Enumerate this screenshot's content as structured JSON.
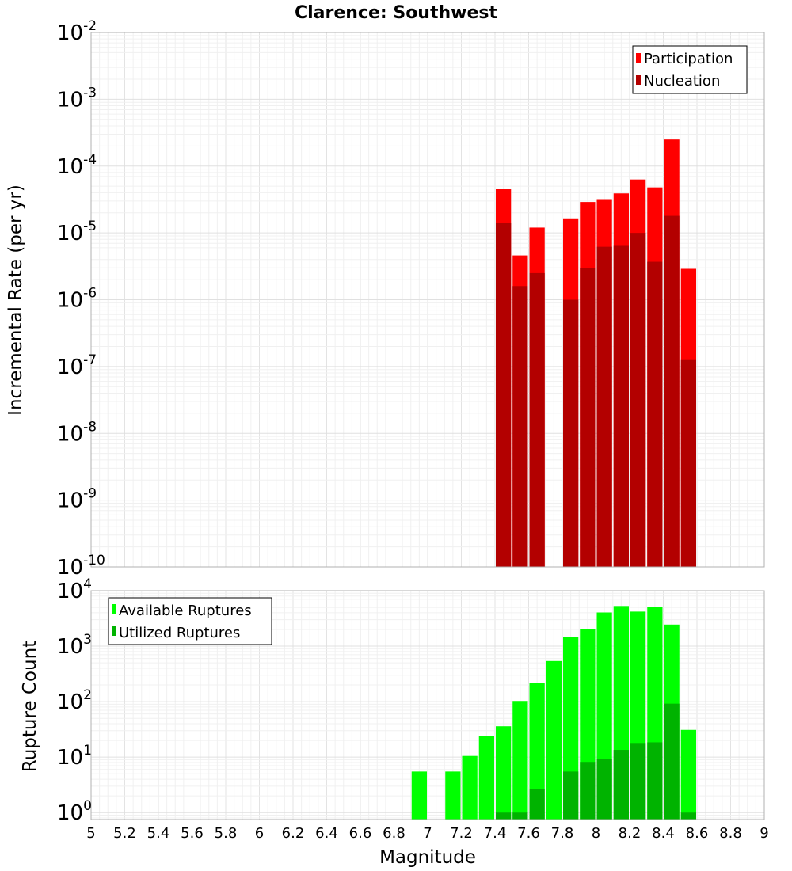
{
  "chart_data": [
    {
      "type": "bar",
      "title": "Clarence: Southwest",
      "xlabel": "",
      "ylabel": "Incremental Rate (per yr)",
      "yscale": "log",
      "ylim": [
        1e-10,
        0.01
      ],
      "ytick_labels": [
        {
          "base": "10",
          "exp": "-10"
        },
        {
          "base": "10",
          "exp": "-9"
        },
        {
          "base": "10",
          "exp": "-8"
        },
        {
          "base": "10",
          "exp": "-7"
        },
        {
          "base": "10",
          "exp": "-6"
        },
        {
          "base": "10",
          "exp": "-5"
        },
        {
          "base": "10",
          "exp": "-4"
        },
        {
          "base": "10",
          "exp": "-3"
        },
        {
          "base": "10",
          "exp": "-2"
        }
      ],
      "xlim": [
        5,
        9
      ],
      "bar_width": 0.1,
      "legend": {
        "position": "top-right",
        "entries": [
          "Participation",
          "Nucleation"
        ]
      },
      "series": [
        {
          "name": "Participation",
          "color": "#ff0000",
          "x": [
            7.45,
            7.55,
            7.65,
            7.85,
            7.95,
            8.05,
            8.15,
            8.25,
            8.35,
            8.45,
            8.55
          ],
          "values": [
            4.5e-05,
            4.6e-06,
            1.2e-05,
            1.65e-05,
            2.9e-05,
            3.2e-05,
            3.9e-05,
            6.3e-05,
            4.8e-05,
            0.00025,
            2.9e-06
          ]
        },
        {
          "name": "Nucleation",
          "color": "#b30000",
          "x": [
            7.45,
            7.55,
            7.65,
            7.85,
            7.95,
            8.05,
            8.15,
            8.25,
            8.35,
            8.45,
            8.55
          ],
          "values": [
            1.4e-05,
            1.6e-06,
            2.5e-06,
            1e-06,
            3e-06,
            6.2e-06,
            6.4e-06,
            1e-05,
            3.7e-06,
            1.8e-05,
            1.25e-07
          ]
        }
      ]
    },
    {
      "type": "bar",
      "title": "",
      "xlabel": "Magnitude",
      "ylabel": "Rupture Count",
      "yscale": "log",
      "ylim": [
        0.75,
        10000
      ],
      "ytick_labels": [
        {
          "base": "10",
          "exp": "0"
        },
        {
          "base": "10",
          "exp": "1"
        },
        {
          "base": "10",
          "exp": "2"
        },
        {
          "base": "10",
          "exp": "3"
        },
        {
          "base": "10",
          "exp": "4"
        }
      ],
      "xlim": [
        5,
        9
      ],
      "xtick_labels": [
        "5",
        "5.2",
        "5.4",
        "5.6",
        "5.8",
        "6",
        "6.2",
        "6.4",
        "6.6",
        "6.8",
        "7",
        "7.2",
        "7.4",
        "7.6",
        "7.8",
        "8",
        "8.2",
        "8.4",
        "8.6",
        "8.8",
        "9"
      ],
      "bar_width": 0.1,
      "legend": {
        "position": "top-left",
        "entries": [
          "Available Ruptures",
          "Utilized Ruptures"
        ]
      },
      "series": [
        {
          "name": "Available Ruptures",
          "color": "#00ff00",
          "x": [
            6.95,
            7.15,
            7.25,
            7.35,
            7.45,
            7.55,
            7.65,
            7.75,
            7.85,
            7.95,
            8.05,
            8.15,
            8.25,
            8.35,
            8.45,
            8.55
          ],
          "values": [
            5.5,
            5.5,
            10.5,
            24,
            36,
            103,
            220,
            540,
            1460,
            2050,
            4050,
            5300,
            4200,
            5100,
            2450,
            31
          ]
        },
        {
          "name": "Utilized Ruptures",
          "color": "#00b300",
          "x": [
            7.45,
            7.55,
            7.65,
            7.85,
            7.95,
            8.05,
            8.15,
            8.25,
            8.35,
            8.45,
            8.55
          ],
          "values": [
            1,
            1,
            2.7,
            5.5,
            8.2,
            9.2,
            13.5,
            18,
            18.5,
            92,
            1
          ]
        }
      ]
    }
  ]
}
